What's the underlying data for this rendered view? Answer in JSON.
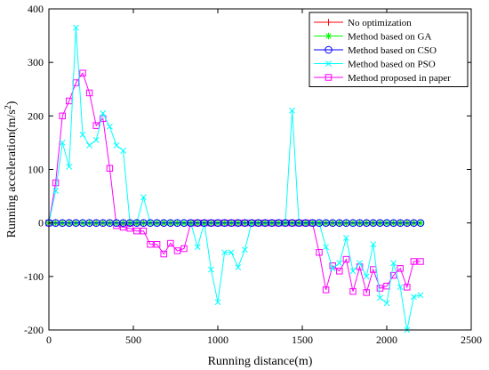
{
  "chart_data": {
    "type": "line",
    "xlabel": "Running distance(m)",
    "ylabel": "Running acceleration(m/s",
    "ylabel_superscript": "2",
    "ylabel_close": ")",
    "xlim": [
      0,
      2500
    ],
    "ylim": [
      -200,
      400
    ],
    "xticks": [
      0,
      500,
      1000,
      1500,
      2000,
      2500
    ],
    "yticks": [
      -200,
      -100,
      0,
      100,
      200,
      300,
      400
    ],
    "grid": false,
    "legend_position": "top-right",
    "series": [
      {
        "name": "No optimization",
        "color": "#ff0000",
        "marker": "plus",
        "x": [
          0,
          40,
          80,
          120,
          160,
          200,
          240,
          280,
          320,
          360,
          400,
          440,
          480,
          520,
          560,
          600,
          640,
          680,
          720,
          760,
          800,
          840,
          880,
          920,
          960,
          1000,
          1040,
          1080,
          1120,
          1160,
          1200,
          1240,
          1280,
          1320,
          1360,
          1400,
          1440,
          1480,
          1520,
          1560,
          1600,
          1640,
          1680,
          1720,
          1760,
          1800,
          1840,
          1880,
          1920,
          1960,
          2000,
          2040,
          2080,
          2120,
          2160,
          2200
        ],
        "y": [
          0,
          0,
          0,
          0,
          0,
          0,
          0,
          0,
          0,
          0,
          0,
          0,
          0,
          0,
          0,
          0,
          0,
          0,
          0,
          0,
          0,
          0,
          0,
          0,
          0,
          0,
          0,
          0,
          0,
          0,
          0,
          0,
          0,
          0,
          0,
          0,
          0,
          0,
          0,
          0,
          0,
          0,
          0,
          0,
          0,
          0,
          0,
          0,
          0,
          0,
          0,
          0,
          0,
          0,
          0,
          0
        ]
      },
      {
        "name": "Method based on GA",
        "color": "#00ff00",
        "marker": "star",
        "x": [
          0,
          40,
          80,
          120,
          160,
          200,
          240,
          280,
          320,
          360,
          400,
          440,
          480,
          520,
          560,
          600,
          640,
          680,
          720,
          760,
          800,
          840,
          880,
          920,
          960,
          1000,
          1040,
          1080,
          1120,
          1160,
          1200,
          1240,
          1280,
          1320,
          1360,
          1400,
          1440,
          1480,
          1520,
          1560,
          1600,
          1640,
          1680,
          1720,
          1760,
          1800,
          1840,
          1880,
          1920,
          1960,
          2000,
          2040,
          2080,
          2120,
          2160,
          2200
        ],
        "y": [
          0,
          0,
          0,
          0,
          0,
          0,
          0,
          0,
          0,
          0,
          0,
          0,
          0,
          0,
          0,
          0,
          0,
          0,
          0,
          0,
          0,
          0,
          0,
          0,
          0,
          0,
          0,
          0,
          0,
          0,
          0,
          0,
          0,
          0,
          0,
          0,
          0,
          0,
          0,
          0,
          0,
          0,
          0,
          0,
          0,
          0,
          0,
          0,
          0,
          0,
          0,
          0,
          0,
          0,
          0,
          0
        ]
      },
      {
        "name": "Method based on CSO",
        "color": "#0000ff",
        "marker": "circle",
        "x": [
          0,
          40,
          80,
          120,
          160,
          200,
          240,
          280,
          320,
          360,
          400,
          440,
          480,
          520,
          560,
          600,
          640,
          680,
          720,
          760,
          800,
          840,
          880,
          920,
          960,
          1000,
          1040,
          1080,
          1120,
          1160,
          1200,
          1240,
          1280,
          1320,
          1360,
          1400,
          1440,
          1480,
          1520,
          1560,
          1600,
          1640,
          1680,
          1720,
          1760,
          1800,
          1840,
          1880,
          1920,
          1960,
          2000,
          2040,
          2080,
          2120,
          2160,
          2200
        ],
        "y": [
          0,
          0,
          0,
          0,
          0,
          0,
          0,
          0,
          0,
          0,
          0,
          0,
          0,
          0,
          0,
          0,
          0,
          0,
          0,
          0,
          0,
          0,
          0,
          0,
          0,
          0,
          0,
          0,
          0,
          0,
          0,
          0,
          0,
          0,
          0,
          0,
          0,
          0,
          0,
          0,
          0,
          0,
          0,
          0,
          0,
          0,
          0,
          0,
          0,
          0,
          0,
          0,
          0,
          0,
          0,
          0
        ]
      },
      {
        "name": "Method based on PSO",
        "color": "#00ffff",
        "marker": "x",
        "x": [
          0,
          40,
          80,
          120,
          160,
          200,
          240,
          280,
          320,
          360,
          400,
          440,
          480,
          520,
          560,
          600,
          640,
          680,
          720,
          760,
          800,
          840,
          880,
          920,
          960,
          1000,
          1040,
          1080,
          1120,
          1160,
          1200,
          1240,
          1280,
          1320,
          1360,
          1400,
          1440,
          1480,
          1520,
          1560,
          1600,
          1640,
          1680,
          1720,
          1760,
          1800,
          1840,
          1880,
          1920,
          1960,
          2000,
          2040,
          2080,
          2120,
          2160,
          2200
        ],
        "y": [
          0,
          60,
          150,
          105,
          365,
          165,
          145,
          155,
          205,
          180,
          145,
          135,
          0,
          0,
          48,
          0,
          0,
          0,
          0,
          0,
          0,
          0,
          -45,
          0,
          -87,
          -148,
          -55,
          -55,
          -83,
          -50,
          0,
          0,
          0,
          0,
          0,
          0,
          210,
          0,
          0,
          0,
          0,
          -45,
          -85,
          -75,
          -28,
          -90,
          -75,
          -100,
          -40,
          -140,
          -150,
          -75,
          -120,
          -200,
          -138,
          -135
        ]
      },
      {
        "name": "Method proposed in paper",
        "color": "#ff00ff",
        "marker": "square",
        "x": [
          0,
          40,
          80,
          120,
          160,
          200,
          240,
          280,
          320,
          360,
          400,
          440,
          480,
          520,
          560,
          600,
          640,
          680,
          720,
          760,
          800,
          840,
          880,
          920,
          960,
          1000,
          1040,
          1080,
          1120,
          1160,
          1200,
          1240,
          1280,
          1320,
          1360,
          1400,
          1440,
          1480,
          1520,
          1560,
          1600,
          1640,
          1680,
          1720,
          1760,
          1800,
          1840,
          1880,
          1920,
          1960,
          2000,
          2040,
          2080,
          2120,
          2160,
          2200
        ],
        "y": [
          0,
          75,
          200,
          228,
          262,
          280,
          243,
          182,
          195,
          102,
          -5,
          -8,
          -10,
          -15,
          -15,
          -40,
          -40,
          -58,
          -38,
          -52,
          -48,
          0,
          0,
          0,
          0,
          0,
          0,
          0,
          0,
          0,
          0,
          0,
          0,
          0,
          0,
          0,
          0,
          0,
          0,
          0,
          -55,
          -125,
          -80,
          -90,
          -68,
          -128,
          -82,
          -130,
          -87,
          -122,
          -118,
          -98,
          -85,
          -120,
          -72,
          -72
        ]
      }
    ]
  }
}
